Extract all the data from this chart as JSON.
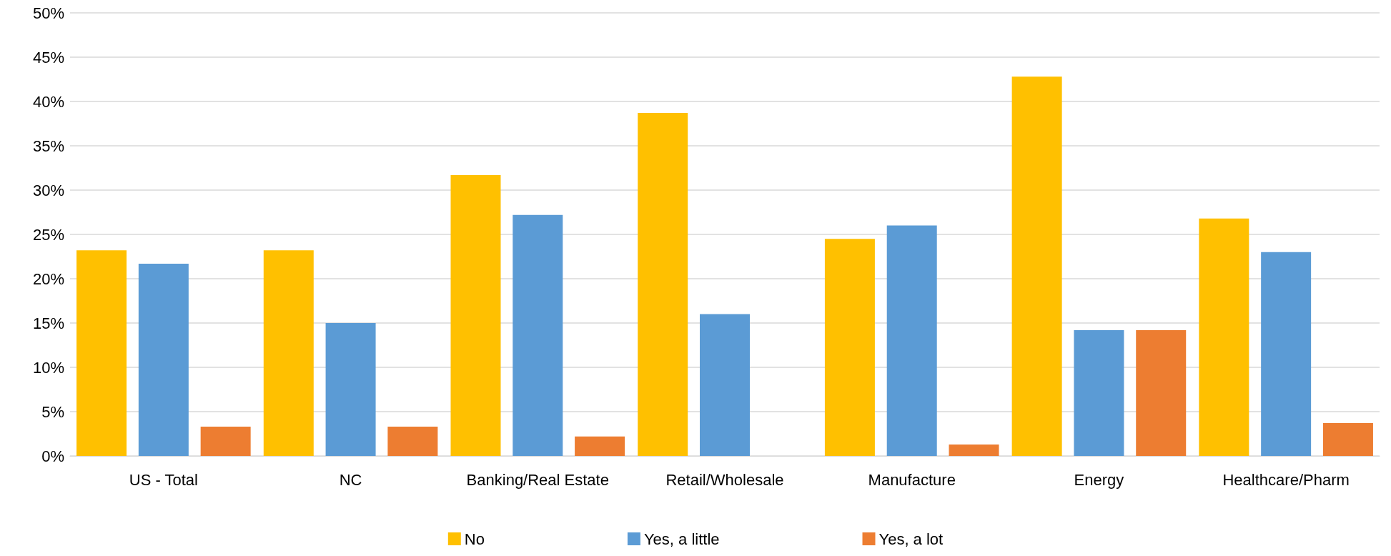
{
  "chart_data": {
    "type": "bar",
    "categories": [
      "US - Total",
      "NC",
      "Banking/Real Estate",
      "Retail/Wholesale",
      "Manufacture",
      "Energy",
      "Healthcare/Pharm"
    ],
    "series": [
      {
        "name": "No",
        "color": "#ffc000",
        "values": [
          23.2,
          23.2,
          31.7,
          38.7,
          24.5,
          42.8,
          26.8
        ]
      },
      {
        "name": "Yes, a little",
        "color": "#5b9bd5",
        "values": [
          21.7,
          15.0,
          27.2,
          16.0,
          26.0,
          14.2,
          23.0
        ]
      },
      {
        "name": "Yes, a lot",
        "color": "#ed7d31",
        "values": [
          3.3,
          3.3,
          2.2,
          0,
          1.3,
          14.2,
          3.7
        ]
      }
    ],
    "ylim": [
      0,
      50
    ],
    "yticks": [
      {
        "value": 0,
        "label": "0%"
      },
      {
        "value": 5,
        "label": "5%"
      },
      {
        "value": 10,
        "label": "10%"
      },
      {
        "value": 15,
        "label": "15%"
      },
      {
        "value": 20,
        "label": "20%"
      },
      {
        "value": 25,
        "label": "25%"
      },
      {
        "value": 30,
        "label": "30%"
      },
      {
        "value": 35,
        "label": "35%"
      },
      {
        "value": 40,
        "label": "40%"
      },
      {
        "value": 45,
        "label": "45%"
      },
      {
        "value": 50,
        "label": "50%"
      }
    ],
    "grid": "y",
    "legend": "bottom"
  }
}
